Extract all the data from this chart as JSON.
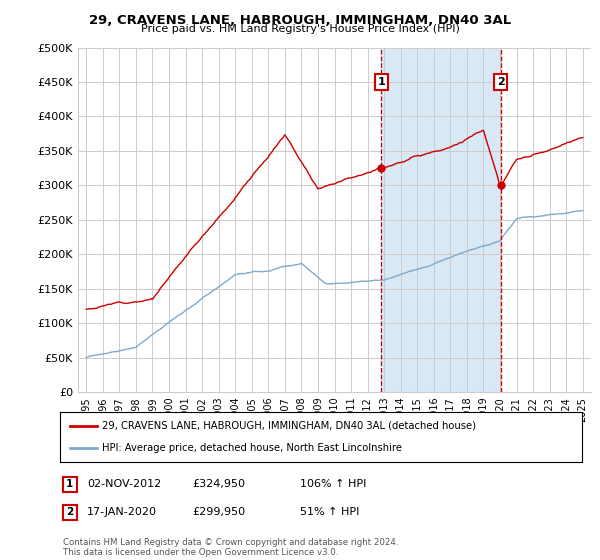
{
  "title": "29, CRAVENS LANE, HABROUGH, IMMINGHAM, DN40 3AL",
  "subtitle": "Price paid vs. HM Land Registry's House Price Index (HPI)",
  "legend_line1": "29, CRAVENS LANE, HABROUGH, IMMINGHAM, DN40 3AL (detached house)",
  "legend_line2": "HPI: Average price, detached house, North East Lincolnshire",
  "footnote": "Contains HM Land Registry data © Crown copyright and database right 2024.\nThis data is licensed under the Open Government Licence v3.0.",
  "point1_label": "1",
  "point1_date": "02-NOV-2012",
  "point1_price": "£324,950",
  "point1_hpi": "106% ↑ HPI",
  "point1_year": 2012.84,
  "point1_value": 324950,
  "point2_label": "2",
  "point2_date": "17-JAN-2020",
  "point2_price": "£299,950",
  "point2_hpi": "51% ↑ HPI",
  "point2_year": 2020.04,
  "point2_value": 299950,
  "red_color": "#cc0000",
  "blue_color": "#7eaacc",
  "shade_color": "#d8e8f5",
  "vline_color": "#cc0000",
  "grid_color": "#cccccc",
  "bg_color": "#ffffff",
  "ylim": [
    0,
    500000
  ],
  "yticks": [
    0,
    50000,
    100000,
    150000,
    200000,
    250000,
    300000,
    350000,
    400000,
    450000,
    500000
  ],
  "ytick_labels": [
    "£0",
    "£50K",
    "£100K",
    "£150K",
    "£200K",
    "£250K",
    "£300K",
    "£350K",
    "£400K",
    "£450K",
    "£500K"
  ],
  "box_edge_color": "#cc0000"
}
